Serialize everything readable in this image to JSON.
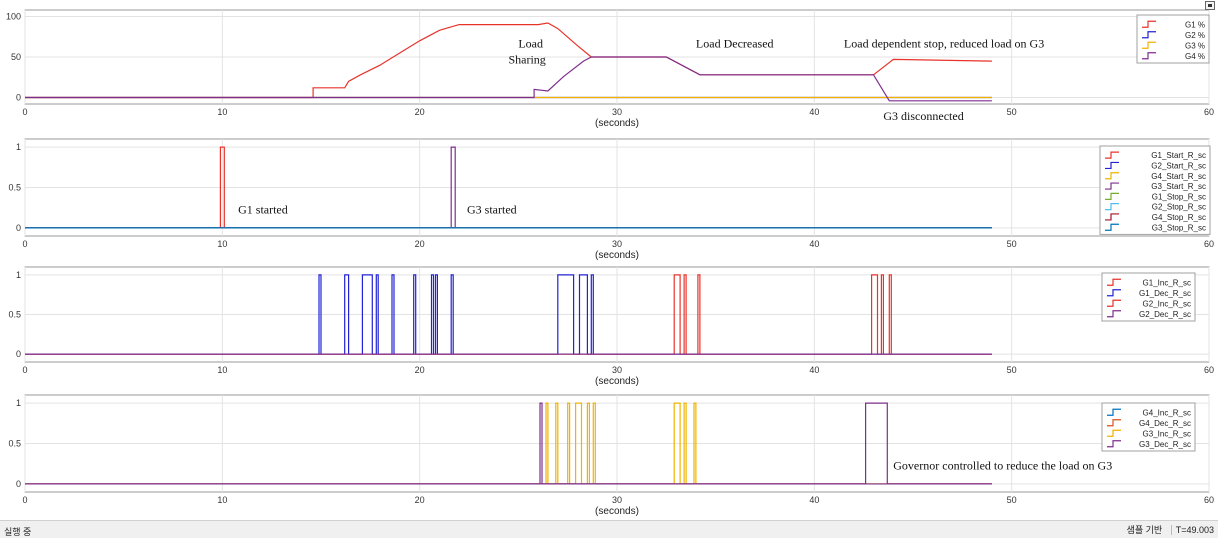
{
  "chart_data": [
    {
      "type": "line",
      "xlabel": "(seconds)",
      "xlim": [
        0,
        60
      ],
      "ylim": [
        -8,
        108
      ],
      "xticks": [
        0,
        10,
        20,
        30,
        40,
        50,
        60
      ],
      "yticks": [
        0,
        50,
        100
      ],
      "grid": true,
      "legend_position": "top-right",
      "series": [
        {
          "name": "G1 %",
          "color": "#e8332a",
          "points": [
            [
              0,
              0
            ],
            [
              14.6,
              0
            ],
            [
              14.6,
              12
            ],
            [
              16.2,
              12
            ],
            [
              16.4,
              20
            ],
            [
              17,
              28
            ],
            [
              18,
              40
            ],
            [
              19,
              55
            ],
            [
              20,
              70
            ],
            [
              21,
              83
            ],
            [
              22,
              90
            ],
            [
              26,
              90
            ],
            [
              26.5,
              92
            ],
            [
              27,
              85
            ],
            [
              28,
              64
            ],
            [
              28.7,
              50
            ],
            [
              32.5,
              50
            ],
            [
              34.2,
              28
            ],
            [
              43,
              28
            ],
            [
              44,
              47
            ],
            [
              49,
              45
            ]
          ]
        },
        {
          "name": "G2 %",
          "color": "#2323d6",
          "points": [
            [
              0,
              0
            ],
            [
              49,
              0
            ]
          ]
        },
        {
          "name": "G3 %",
          "color": "#f0b400",
          "points": [
            [
              0,
              0
            ],
            [
              49,
              0
            ]
          ]
        },
        {
          "name": "G4 %",
          "color": "#7e2f8e",
          "points": [
            [
              0,
              0
            ],
            [
              25.8,
              0
            ],
            [
              25.8,
              10
            ],
            [
              26.5,
              8
            ],
            [
              27.3,
              26
            ],
            [
              28.3,
              45
            ],
            [
              28.7,
              50
            ],
            [
              32.5,
              50
            ],
            [
              34.2,
              28
            ],
            [
              43,
              28
            ],
            [
              43.8,
              -4
            ],
            [
              49,
              -4
            ]
          ]
        }
      ],
      "annotations": [
        {
          "text": "Load",
          "x": 25.0,
          "y": 62
        },
        {
          "text": "Sharing",
          "x": 24.5,
          "y": 42
        },
        {
          "text": "Load Decreased",
          "x": 34.0,
          "y": 62
        },
        {
          "text": "Load dependent stop, reduced load on G3",
          "x": 41.5,
          "y": 62
        },
        {
          "text": "G3 disconnected",
          "x": 43.5,
          "y": -28
        }
      ]
    },
    {
      "type": "line",
      "xlabel": "(seconds)",
      "xlim": [
        0,
        60
      ],
      "ylim": [
        -0.1,
        1.1
      ],
      "xticks": [
        0,
        10,
        20,
        30,
        40,
        50,
        60
      ],
      "yticks": [
        0,
        0.5,
        1
      ],
      "grid": true,
      "legend_position": "top-right",
      "series": [
        {
          "name": "G1_Start_R_sc",
          "color": "#e8332a",
          "points": [
            [
              0,
              0
            ],
            [
              9.9,
              0
            ],
            [
              9.9,
              1
            ],
            [
              10.1,
              1
            ],
            [
              10.1,
              0
            ],
            [
              49,
              0
            ]
          ]
        },
        {
          "name": "G2_Start_R_sc",
          "color": "#2323d6",
          "points": [
            [
              0,
              0
            ],
            [
              49,
              0
            ]
          ]
        },
        {
          "name": "G4_Start_R_sc",
          "color": "#f0b400",
          "points": [
            [
              0,
              0
            ],
            [
              49,
              0
            ]
          ]
        },
        {
          "name": "G3_Start_R_sc",
          "color": "#7e2f8e",
          "points": [
            [
              0,
              0
            ],
            [
              21.6,
              0
            ],
            [
              21.6,
              1
            ],
            [
              21.8,
              1
            ],
            [
              21.8,
              0
            ],
            [
              49,
              0
            ]
          ]
        },
        {
          "name": "G1_Stop_R_sc",
          "color": "#77ac30",
          "points": [
            [
              0,
              0
            ],
            [
              49,
              0
            ]
          ]
        },
        {
          "name": "G2_Stop_R_sc",
          "color": "#4dbeee",
          "points": [
            [
              0,
              0
            ],
            [
              49,
              0
            ]
          ]
        },
        {
          "name": "G4_Stop_R_sc",
          "color": "#a2142f",
          "points": [
            [
              0,
              0
            ],
            [
              49,
              0
            ]
          ]
        },
        {
          "name": "G3_Stop_R_sc",
          "color": "#0072bd",
          "points": [
            [
              0,
              0
            ],
            [
              49,
              0
            ]
          ]
        }
      ],
      "annotations": [
        {
          "text": "G1 started",
          "x": 10.8,
          "y": 0.18
        },
        {
          "text": "G3 started",
          "x": 22.4,
          "y": 0.18
        }
      ]
    },
    {
      "type": "line",
      "xlabel": "(seconds)",
      "xlim": [
        0,
        60
      ],
      "ylim": [
        -0.1,
        1.1
      ],
      "xticks": [
        0,
        10,
        20,
        30,
        40,
        50,
        60
      ],
      "yticks": [
        0,
        0.5,
        1
      ],
      "grid": true,
      "legend_position": "top-right",
      "series": [
        {
          "name": "G1_Inc_R_sc",
          "color": "#e8332a",
          "pulses": []
        },
        {
          "name": "G1_Dec_R_sc",
          "color": "#2323d6",
          "pulses": [
            [
              14.9,
              15.0
            ],
            [
              16.2,
              16.4
            ],
            [
              17.1,
              17.6
            ],
            [
              17.8,
              17.9
            ],
            [
              18.6,
              18.7
            ],
            [
              19.7,
              19.8
            ],
            [
              20.6,
              20.7
            ],
            [
              20.8,
              20.9
            ],
            [
              21.6,
              21.7
            ],
            [
              27.0,
              27.8
            ],
            [
              28.1,
              28.5
            ],
            [
              28.7,
              28.8
            ]
          ]
        },
        {
          "name": "G2_Inc_R_sc",
          "color": "#e8332a",
          "pulses": [
            [
              32.9,
              33.2
            ],
            [
              33.4,
              33.5
            ],
            [
              34.1,
              34.2
            ],
            [
              42.9,
              43.2
            ],
            [
              43.4,
              43.5
            ],
            [
              43.8,
              43.9
            ]
          ]
        },
        {
          "name": "G2_Dec_R_sc",
          "color": "#7e2f8e",
          "pulses": []
        }
      ]
    },
    {
      "type": "line",
      "xlabel": "(seconds)",
      "xlim": [
        0,
        60
      ],
      "ylim": [
        -0.1,
        1.1
      ],
      "xticks": [
        0,
        10,
        20,
        30,
        40,
        50,
        60
      ],
      "yticks": [
        0,
        0.5,
        1
      ],
      "grid": true,
      "legend_position": "top-right",
      "series": [
        {
          "name": "G4_Inc_R_sc",
          "color": "#0072bd",
          "pulses": []
        },
        {
          "name": "G4_Dec_R_sc",
          "color": "#d95319",
          "pulses": []
        },
        {
          "name": "G3_Inc_R_sc",
          "color": "#f0b400",
          "pulses": [
            [
              26.4,
              26.5
            ],
            [
              26.9,
              27.0
            ],
            [
              27.5,
              27.6
            ],
            [
              27.9,
              28.2
            ],
            [
              28.5,
              28.6
            ],
            [
              28.8,
              28.9
            ],
            [
              32.9,
              33.2
            ],
            [
              33.4,
              33.5
            ],
            [
              33.9,
              34.0
            ]
          ]
        },
        {
          "name": "G3_Dec_R_sc",
          "color": "#7e2f8e",
          "pulses": [
            [
              26.1,
              26.2
            ],
            [
              42.6,
              43.7
            ]
          ]
        }
      ],
      "annotations": [
        {
          "text": "Governor controlled to reduce the load on G3",
          "x": 44.0,
          "y": 0.18
        }
      ]
    }
  ],
  "status": {
    "left_text": "실행 중",
    "sample_mode": "샘플 기반",
    "time_readout": "T=49.003"
  },
  "toolbar": {
    "dock_icon": "dock-icon"
  }
}
